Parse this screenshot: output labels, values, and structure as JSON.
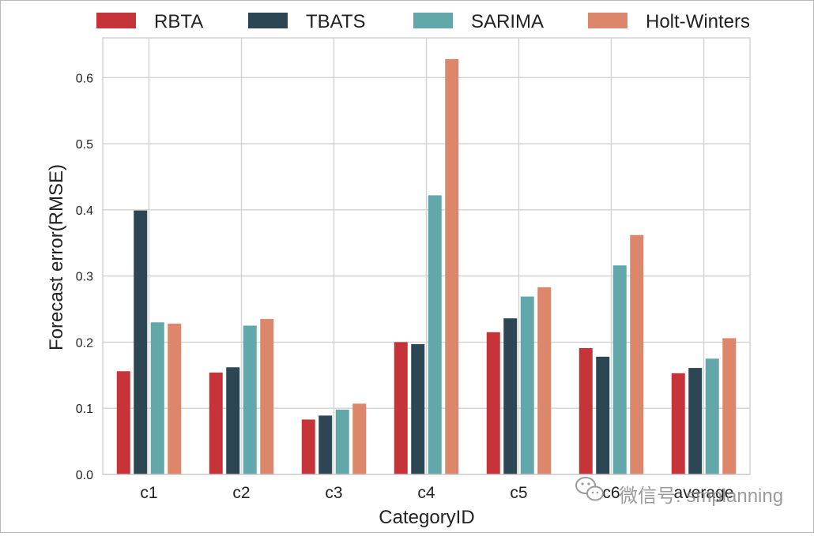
{
  "chart_data": {
    "type": "bar",
    "xlabel": "CategoryID",
    "ylabel": "Forecast error(RMSE)",
    "categories": [
      "c1",
      "c2",
      "c3",
      "c4",
      "c5",
      "c6",
      "average"
    ],
    "ylim": [
      0,
      0.66
    ],
    "yticks": [
      0.0,
      0.1,
      0.2,
      0.3,
      0.4,
      0.5,
      0.6
    ],
    "ytick_labels": [
      "0.0",
      "0.1",
      "0.2",
      "0.3",
      "0.4",
      "0.5",
      "0.6"
    ],
    "grid": true,
    "legend_position": "top",
    "series": [
      {
        "name": "RBTA",
        "color": "#c6343a",
        "values": [
          0.156,
          0.154,
          0.083,
          0.2,
          0.215,
          0.191,
          0.153
        ]
      },
      {
        "name": "TBATS",
        "color": "#2d4653",
        "values": [
          0.399,
          0.162,
          0.089,
          0.197,
          0.236,
          0.178,
          0.161
        ]
      },
      {
        "name": "SARIMA",
        "color": "#62a8ab",
        "values": [
          0.23,
          0.225,
          0.098,
          0.422,
          0.269,
          0.316,
          0.175
        ]
      },
      {
        "name": "Holt-Winters",
        "color": "#dc876b",
        "values": [
          0.228,
          0.235,
          0.107,
          0.628,
          0.283,
          0.362,
          0.206
        ]
      }
    ]
  },
  "watermark": {
    "text": "微信号: smplanning",
    "icon": "wechat-icon"
  }
}
